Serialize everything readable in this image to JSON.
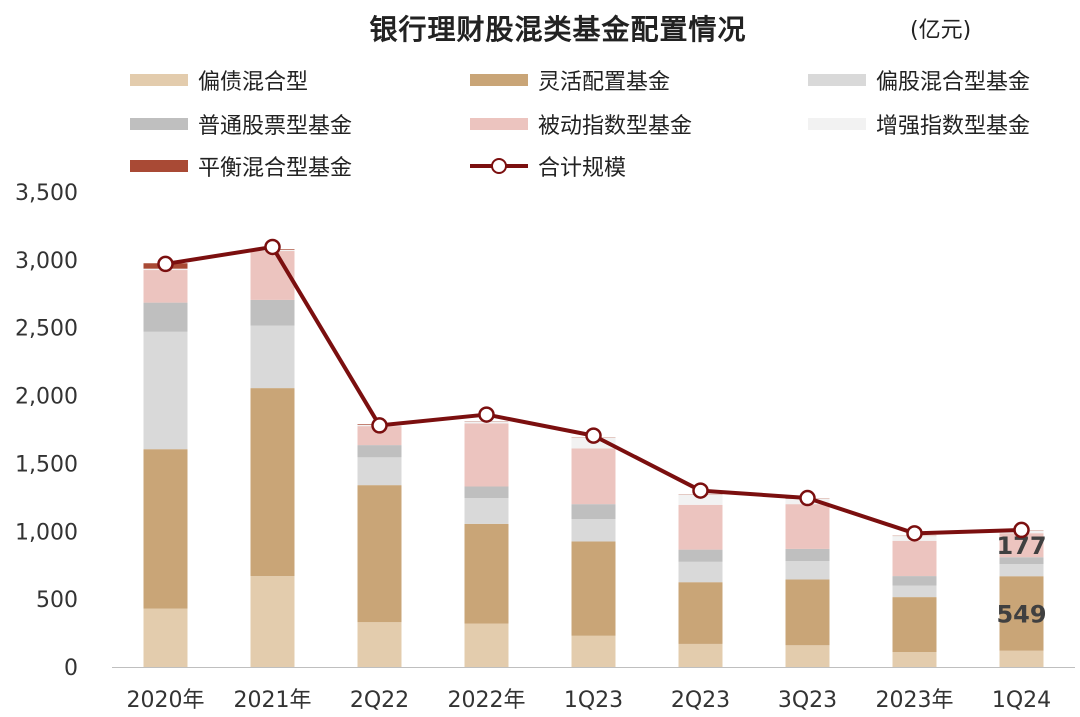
{
  "header": {
    "title": "银行理财股混类基金配置情况",
    "unit": "(亿元)"
  },
  "legend": [
    {
      "label": "偏债混合型",
      "color": "#e3ccad",
      "kind": "bar"
    },
    {
      "label": "灵活配置基金",
      "color": "#c9a577",
      "kind": "bar"
    },
    {
      "label": "偏股混合型基金",
      "color": "#d9d9d9",
      "kind": "bar"
    },
    {
      "label": "普通股票型基金",
      "color": "#bfbfbf",
      "kind": "bar"
    },
    {
      "label": "被动指数型基金",
      "color": "#ecc4bf",
      "kind": "bar"
    },
    {
      "label": "增强指数型基金",
      "color": "#f2f2f2",
      "kind": "bar"
    },
    {
      "label": "平衡混合型基金",
      "color": "#a94a35",
      "kind": "bar"
    },
    {
      "label": "合计规模",
      "color": "#7b0f0f",
      "kind": "line"
    }
  ],
  "chart_data": {
    "type": "bar",
    "stacked": true,
    "title": "银行理财股混类基金配置情况",
    "unit": "(亿元)",
    "categories": [
      "2020年",
      "2021年",
      "2Q22",
      "2022年",
      "1Q23",
      "2Q23",
      "3Q23",
      "2023年",
      "1Q24"
    ],
    "ylim": [
      0,
      3500
    ],
    "yticks": [
      0,
      500,
      1000,
      1500,
      2000,
      2500,
      3000,
      3500
    ],
    "ytick_labels": [
      "0",
      "500",
      "1,000",
      "1,500",
      "2,000",
      "2,500",
      "3,000",
      "3,500"
    ],
    "series": [
      {
        "name": "偏债混合型",
        "color": "#e3ccad",
        "values": [
          430,
          670,
          330,
          320,
          230,
          170,
          160,
          110,
          120
        ]
      },
      {
        "name": "灵活配置基金",
        "color": "#c9a577",
        "values": [
          1175,
          1385,
          1010,
          735,
          695,
          455,
          485,
          405,
          549
        ]
      },
      {
        "name": "偏股混合型基金",
        "color": "#d9d9d9",
        "values": [
          865,
          460,
          205,
          190,
          165,
          150,
          135,
          85,
          90
        ]
      },
      {
        "name": "普通股票型基金",
        "color": "#bfbfbf",
        "values": [
          215,
          190,
          90,
          85,
          110,
          90,
          90,
          70,
          50
        ]
      },
      {
        "name": "被动指数型基金",
        "color": "#ecc4bf",
        "values": [
          240,
          360,
          140,
          465,
          410,
          330,
          330,
          260,
          177
        ]
      },
      {
        "name": "增强指数型基金",
        "color": "#f2f2f2",
        "values": [
          10,
          10,
          10,
          15,
          80,
          75,
          40,
          35,
          20
        ]
      },
      {
        "name": "平衡混合型基金",
        "color": "#a94a35",
        "values": [
          40,
          5,
          5,
          2,
          2,
          2,
          2,
          2,
          2
        ]
      }
    ],
    "line": {
      "name": "合计规模",
      "color": "#7b0f0f",
      "values": [
        2970,
        3095,
        1780,
        1860,
        1705,
        1300,
        1245,
        985,
        1010
      ]
    },
    "data_labels": [
      {
        "category": "1Q24",
        "series": "被动指数型基金",
        "text": "177"
      },
      {
        "category": "1Q24",
        "series": "灵活配置基金",
        "text": "549"
      }
    ]
  }
}
